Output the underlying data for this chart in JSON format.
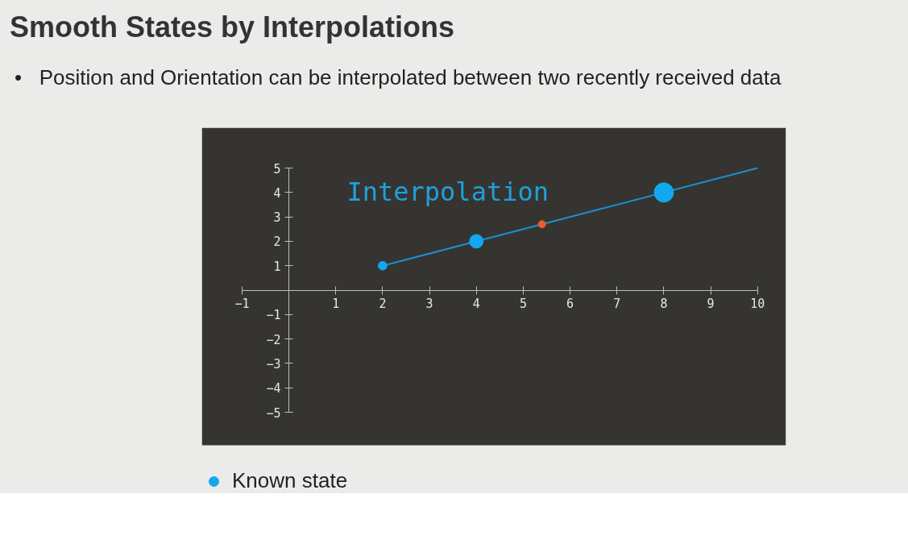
{
  "chart_data": {
    "type": "line",
    "title": "Smooth States by Interpolations",
    "subtitle": "•   Position and Orientation can be interpolated between two recently received data",
    "series": [
      {
        "color": "#1a8fd0",
        "x": [
          2,
          10
        ],
        "values": [
          1,
          5
        ]
      },
      {
        "type": "bubble",
        "name": "Known state",
        "color": "#12a8f0",
        "x": [
          2,
          4,
          8
        ],
        "values": [
          1,
          2,
          4
        ],
        "sizes": [
          0.2,
          0.5,
          1
        ],
        "marker": "circle"
      },
      {
        "type": "scatter",
        "color": "#f05a30",
        "x": [
          5.4
        ],
        "values": [
          2.7
        ],
        "marker": "circle"
      }
    ],
    "annotations": [
      "Interpolation"
    ],
    "xlim": [
      -1,
      10
    ],
    "xticks": [
      -1,
      1,
      2,
      3,
      4,
      5,
      6,
      7,
      8,
      9,
      10
    ],
    "ylim": [
      -5,
      5
    ],
    "yticks": [
      -5,
      -4,
      -3,
      -2,
      -1,
      1,
      2,
      3,
      4,
      5
    ],
    "grid": false,
    "legend": "bottom left"
  }
}
